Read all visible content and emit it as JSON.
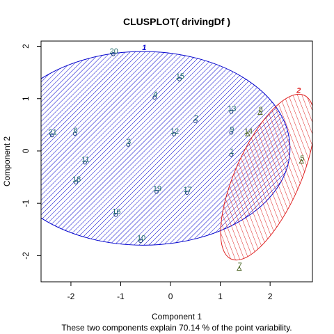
{
  "chart_data": {
    "type": "scatter",
    "title": "CLUSPLOT( drivingDf )",
    "xlabel": "Component 1",
    "ylabel": "Component 2",
    "subtitle": "These two components explain 70.14 % of the point variability.",
    "xlim": [
      -2.6,
      2.85
    ],
    "ylim": [
      -2.5,
      2.1
    ],
    "xticks": [
      -2,
      -1,
      0,
      1,
      2
    ],
    "yticks": [
      -2,
      -1,
      0,
      1,
      2
    ],
    "colors": {
      "cluster_1": "#0000CD",
      "cluster_2": "#DF2020",
      "point_1": "#1B3F7A",
      "point_2": "#556B2F",
      "label_1": "#1E6B6B",
      "label_2": "#4E6B2A"
    },
    "clusters": [
      {
        "label": "1",
        "center": [
          -0.55,
          0.05
        ],
        "rx": 2.95,
        "ry": 1.85,
        "angle": 0
      },
      {
        "label": "2",
        "center": [
          1.95,
          -0.5
        ],
        "rx": 1.8,
        "ry": 0.62,
        "angle": 66
      }
    ],
    "points": [
      {
        "label": "1",
        "x": 1.22,
        "y": -0.07,
        "cluster": 1
      },
      {
        "label": "2",
        "x": 0.5,
        "y": 0.57,
        "cluster": 1
      },
      {
        "label": "3",
        "x": -0.85,
        "y": 0.12,
        "cluster": 1
      },
      {
        "label": "4",
        "x": -0.32,
        "y": 1.02,
        "cluster": 1
      },
      {
        "label": "5",
        "x": 2.63,
        "y": -0.2,
        "cluster": 2
      },
      {
        "label": "6",
        "x": -1.92,
        "y": 0.33,
        "cluster": 1
      },
      {
        "label": "7",
        "x": 1.38,
        "y": -2.25,
        "cluster": 2
      },
      {
        "label": "8",
        "x": 1.8,
        "y": 0.73,
        "cluster": 2
      },
      {
        "label": "9",
        "x": 1.22,
        "y": 0.35,
        "cluster": 1
      },
      {
        "label": "10",
        "x": -0.6,
        "y": -1.72,
        "cluster": 1
      },
      {
        "label": "11",
        "x": -1.72,
        "y": -0.22,
        "cluster": 1
      },
      {
        "label": "12",
        "x": 0.07,
        "y": 0.32,
        "cluster": 1
      },
      {
        "label": "13",
        "x": 1.22,
        "y": 0.75,
        "cluster": 1
      },
      {
        "label": "14",
        "x": 1.55,
        "y": 0.32,
        "cluster": 2
      },
      {
        "label": "15",
        "x": 0.18,
        "y": 1.37,
        "cluster": 1
      },
      {
        "label": "16",
        "x": -1.1,
        "y": -1.22,
        "cluster": 1
      },
      {
        "label": "17",
        "x": 0.33,
        "y": -0.8,
        "cluster": 1
      },
      {
        "label": "18",
        "x": -1.9,
        "y": -0.6,
        "cluster": 1
      },
      {
        "label": "19",
        "x": -0.28,
        "y": -0.78,
        "cluster": 1
      },
      {
        "label": "20",
        "x": -1.15,
        "y": 1.85,
        "cluster": 1
      },
      {
        "label": "21",
        "x": -2.38,
        "y": 0.3,
        "cluster": 1
      }
    ]
  }
}
